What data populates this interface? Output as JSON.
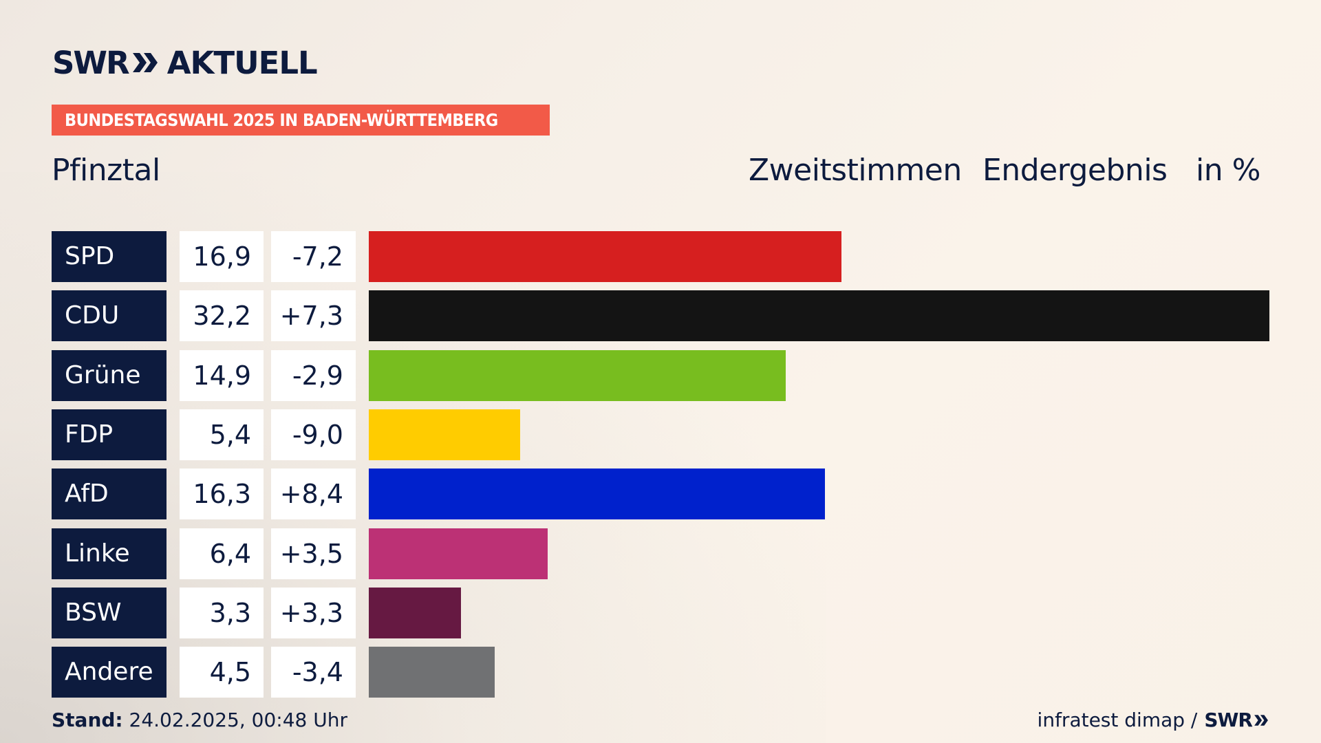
{
  "header": {
    "logo_brand": "SWR",
    "logo_suffix": "AKTUELL",
    "ribbon": "BUNDESTAGSWAHL 2025 IN BADEN-WÜRTTEMBERG",
    "region": "Pfinztal",
    "col_type": "Zweitstimmen",
    "col_status": "Endergebnis",
    "col_unit": "in %"
  },
  "chart_data": {
    "type": "bar",
    "orientation": "horizontal",
    "categories": [
      "SPD",
      "CDU",
      "Grüne",
      "FDP",
      "AfD",
      "Linke",
      "BSW",
      "Andere"
    ],
    "values": [
      16.9,
      32.2,
      14.9,
      5.4,
      16.3,
      6.4,
      3.3,
      4.5
    ],
    "value_labels": [
      "16,9",
      "32,2",
      "14,9",
      "5,4",
      "16,3",
      "6,4",
      "3,3",
      "4,5"
    ],
    "diff_labels": [
      "-7,2",
      "+7,3",
      "-2,9",
      "-9,0",
      "+8,4",
      "+3,5",
      "+3,3",
      "-3,4"
    ],
    "colors": [
      "#d61f1f",
      "#141414",
      "#78bd1f",
      "#ffcc00",
      "#0021cc",
      "#bc3175",
      "#661942",
      "#707173"
    ],
    "xlim": [
      0,
      32.2
    ]
  },
  "footer": {
    "stand_label": "Stand:",
    "stand_value": "24.02.2025, 00:48 Uhr",
    "source": "infratest dimap /",
    "source_brand": "SWR"
  }
}
